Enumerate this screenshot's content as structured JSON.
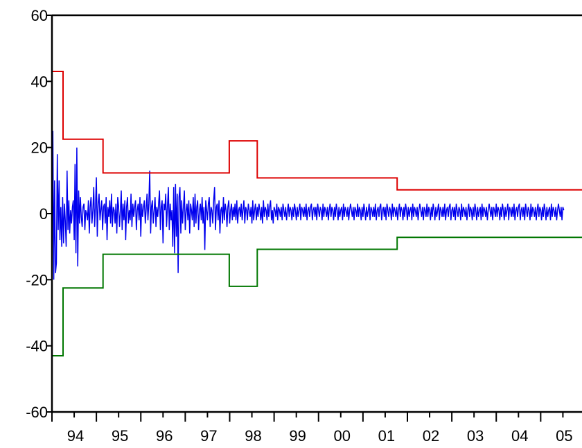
{
  "chart_data": {
    "type": "line",
    "title": "",
    "xlabel": "",
    "ylabel": "",
    "ylim": [
      -60,
      60
    ],
    "xlim": [
      1994.0,
      2005.93
    ],
    "y_ticks": [
      -60,
      -40,
      -20,
      0,
      20,
      40,
      60
    ],
    "y_tick_labels": [
      "-60",
      "-40",
      "-20",
      "0",
      "20",
      "40",
      "60"
    ],
    "x_tick_labels": [
      "94",
      "95",
      "96",
      "97",
      "98",
      "99",
      "00",
      "01",
      "02",
      "03",
      "04",
      "05"
    ],
    "x_tick_positions": [
      1994.25,
      1995.25,
      1996.25,
      1997.25,
      1998.25,
      1999.25,
      2000.25,
      2001.25,
      2002.25,
      2003.25,
      2004.25,
      2005.25
    ],
    "grid": false,
    "legend": "none",
    "colors": {
      "series": "#0000ee",
      "upper": "#dd0000",
      "lower": "#007700",
      "axis": "#000000"
    },
    "series": [
      {
        "color": "#0000ee",
        "x_start": 1994.0,
        "x_step": 0.02,
        "values": [
          -13,
          25,
          -20,
          10,
          -18,
          -15,
          18,
          -5,
          10,
          -8,
          2,
          -10,
          5,
          -9,
          3,
          -2,
          -10,
          13,
          -5,
          4,
          -6,
          1,
          -3,
          2,
          4,
          -8,
          15,
          -12,
          20,
          -16,
          7,
          -3,
          5,
          -1,
          -4,
          2,
          3,
          -5,
          1,
          0,
          -2,
          4,
          -6,
          2,
          5,
          -3,
          1,
          8,
          -4,
          2,
          11,
          -7,
          3,
          6,
          -2,
          1,
          4,
          -5,
          2,
          3,
          -3,
          5,
          -8,
          2,
          -1,
          4,
          -3,
          6,
          -4,
          2,
          1,
          -3,
          3,
          -6,
          5,
          2,
          -4,
          1,
          7,
          -5,
          3,
          -2,
          4,
          -8,
          2,
          5,
          -3,
          1,
          -2,
          6,
          -4,
          3,
          -1,
          2,
          4,
          -5,
          1,
          3,
          -2,
          5,
          -7,
          3,
          -1,
          2,
          4,
          -3,
          1,
          6,
          -2,
          3,
          13,
          -6,
          2,
          4,
          -3,
          1,
          5,
          -4,
          2,
          -1,
          3,
          7,
          -5,
          2,
          4,
          -9,
          3,
          1,
          6,
          -4,
          2,
          8,
          -5,
          3,
          -2,
          1,
          -10,
          8,
          -12,
          9,
          -7,
          6,
          -18,
          5,
          8,
          -6,
          4,
          -3,
          2,
          7,
          -5,
          1,
          3,
          -2,
          4,
          -6,
          3,
          1,
          -2,
          5,
          -4,
          6,
          -3,
          2,
          4,
          -5,
          1,
          3,
          -2,
          5,
          -3,
          2,
          -11,
          4,
          1,
          -2,
          3,
          5,
          -4,
          2,
          1,
          -3,
          4,
          8,
          -5,
          2,
          3,
          -2,
          4,
          -6,
          1,
          2,
          -3,
          5,
          -2,
          3,
          1,
          -4,
          2,
          4,
          -3,
          1,
          3,
          -2,
          2,
          -1,
          3,
          -2,
          4,
          -3,
          1,
          2,
          -1,
          3,
          -2,
          1,
          4,
          -3,
          2,
          1,
          -2,
          3,
          1,
          -1,
          2,
          -3,
          4,
          -2,
          1,
          3,
          -2,
          2,
          -1,
          3,
          1,
          -2,
          2,
          -3,
          4,
          -1,
          2,
          1,
          -2,
          3,
          -1,
          2,
          4,
          -2,
          1,
          -3,
          2,
          1,
          -1,
          3,
          -2,
          2,
          1,
          -1,
          2,
          -2,
          3,
          1,
          -1,
          2,
          -2,
          1,
          3,
          -1,
          2,
          1,
          -2,
          2,
          -1,
          3,
          1,
          -2,
          2,
          -1,
          1,
          3,
          -2,
          2,
          1,
          -1,
          2,
          -1,
          3,
          -2,
          1,
          2,
          -1,
          2,
          3,
          -2,
          1,
          2,
          -1,
          2,
          -2,
          3,
          1,
          -1,
          2,
          1,
          -2,
          3,
          -1,
          2,
          1,
          -1,
          2,
          -2,
          1,
          3,
          -1,
          2,
          1,
          -2,
          2,
          -1,
          3,
          1,
          -2,
          2,
          -1,
          1,
          2,
          -2,
          3,
          -1,
          2,
          1,
          -1,
          2,
          -2,
          1,
          3,
          1,
          -1,
          2,
          -2,
          2,
          1,
          -1,
          3,
          -1,
          2,
          1,
          -2,
          2,
          -1,
          3,
          1,
          -2,
          2,
          -1,
          1,
          3,
          -2,
          2,
          1,
          -1,
          2,
          -1,
          3,
          -2,
          1,
          2,
          -1,
          2,
          3,
          -2,
          1,
          2,
          -1,
          2,
          -2,
          3,
          1,
          -1,
          2,
          1,
          -2,
          3,
          -1,
          2,
          1,
          -1,
          2,
          -2,
          1,
          3,
          -1,
          2,
          1,
          -2,
          2,
          -1,
          3,
          1,
          -2,
          2,
          -1,
          1,
          2,
          -2,
          3,
          -1,
          2,
          1,
          -1,
          2,
          -2,
          1,
          3,
          1,
          -1,
          2,
          -2,
          2,
          1,
          -1,
          3,
          -1,
          2,
          1,
          -2,
          2,
          -1,
          3,
          1,
          -2,
          2,
          -1,
          1,
          3,
          -2,
          2,
          1,
          -1,
          2,
          -1,
          3,
          -2,
          1,
          2,
          -1,
          2,
          3,
          -2,
          1,
          2,
          -1,
          2,
          -2,
          3,
          1,
          -1,
          2,
          1,
          -2,
          3,
          -1,
          2,
          1,
          -1,
          2,
          -2,
          1,
          3,
          -1,
          2,
          1,
          -2,
          2,
          -1,
          3,
          1,
          -2,
          2,
          -1,
          1,
          2,
          -2,
          3,
          -1,
          2,
          1,
          -1,
          2,
          -2,
          1,
          3,
          1,
          -1,
          2,
          -2,
          2,
          1,
          -1,
          3,
          -1,
          2,
          1,
          -2,
          2,
          -1,
          3,
          1,
          -2,
          2,
          -1,
          1,
          3,
          -2,
          2,
          1,
          -1,
          2,
          -1,
          3,
          -2,
          1,
          2,
          -1,
          2,
          3,
          -2,
          1,
          2,
          -1,
          2,
          -2,
          3,
          1,
          -1,
          2,
          1,
          -2,
          3,
          -1,
          2,
          1,
          -1,
          2,
          -2,
          1,
          3,
          -1,
          2,
          1,
          -2,
          2,
          -1,
          3,
          1,
          -2,
          2,
          -1,
          1,
          2,
          -2,
          3,
          -1,
          2,
          1,
          -1,
          2,
          -2,
          1,
          3,
          1,
          -1,
          2,
          -2,
          2,
          1
        ]
      },
      {
        "color": "#dd0000",
        "steps": [
          {
            "x0": 1994.0,
            "x1": 1994.25,
            "y": 43
          },
          {
            "x0": 1994.25,
            "x1": 1995.15,
            "y": 22.5
          },
          {
            "x0": 1995.15,
            "x1": 1997.99,
            "y": 12.3
          },
          {
            "x0": 1997.99,
            "x1": 1998.62,
            "y": 22
          },
          {
            "x0": 1998.62,
            "x1": 2001.77,
            "y": 10.8
          },
          {
            "x0": 2001.77,
            "x1": 2005.93,
            "y": 7.2
          }
        ]
      },
      {
        "color": "#007700",
        "steps": [
          {
            "x0": 1994.0,
            "x1": 1994.25,
            "y": -43
          },
          {
            "x0": 1994.25,
            "x1": 1995.15,
            "y": -22.5
          },
          {
            "x0": 1995.15,
            "x1": 1997.99,
            "y": -12.3
          },
          {
            "x0": 1997.99,
            "x1": 1998.62,
            "y": -22
          },
          {
            "x0": 1998.62,
            "x1": 2001.77,
            "y": -10.8
          },
          {
            "x0": 2001.77,
            "x1": 2005.93,
            "y": -7.2
          }
        ]
      }
    ]
  }
}
